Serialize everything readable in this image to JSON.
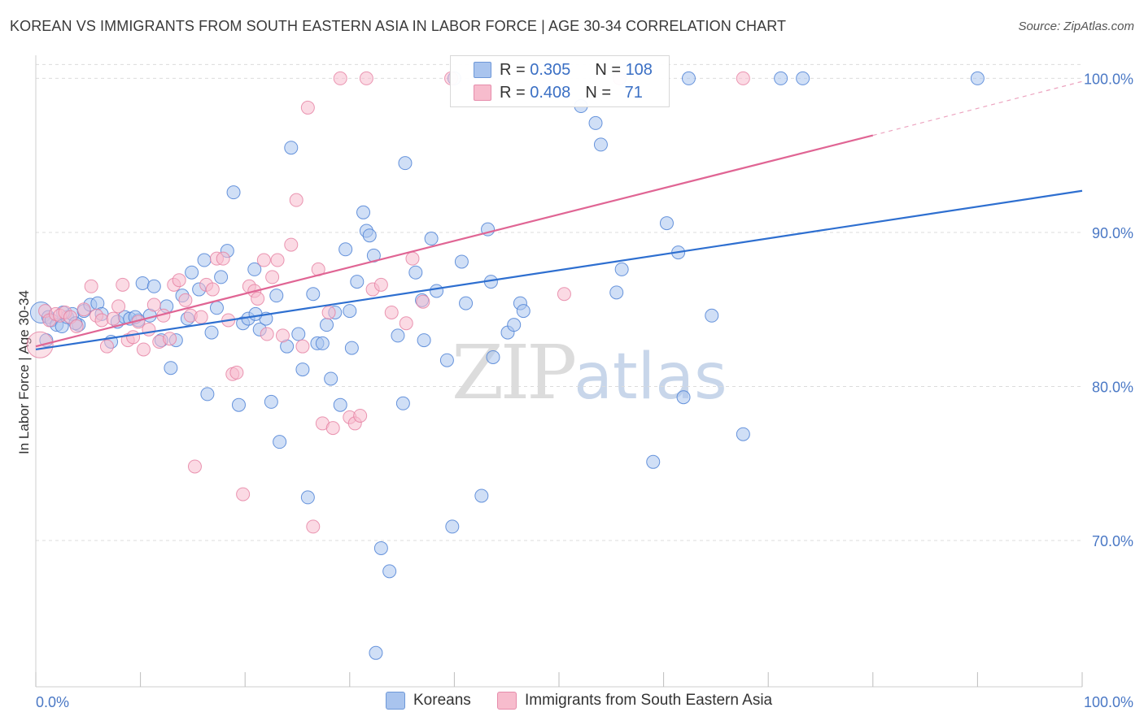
{
  "header": {
    "title": "KOREAN VS IMMIGRANTS FROM SOUTH EASTERN ASIA IN LABOR FORCE | AGE 30-34 CORRELATION CHART",
    "source": "Source: ZipAtlas.com"
  },
  "watermark": {
    "zip": "ZIP",
    "atlas": "atlas"
  },
  "legend": {
    "korean": {
      "r_label": "R =",
      "r_value": "0.305",
      "n_label": "N =",
      "n_value": "108"
    },
    "sea": {
      "r_label": "R =",
      "r_value": "0.408",
      "n_label": "N =",
      "n_value": "71"
    }
  },
  "colors": {
    "korean_fill": "#a9c4ee",
    "korean_stroke": "#4f83d6",
    "korean_line": "#2e6fd0",
    "sea_fill": "#f7bccd",
    "sea_stroke": "#e57ea0",
    "sea_line": "#e06594",
    "tick_text": "#4a78c5",
    "grid": "#dcdcdc"
  },
  "chart_data": {
    "type": "scatter",
    "title": "KOREAN VS IMMIGRANTS FROM SOUTH EASTERN ASIA IN LABOR FORCE | AGE 30-34 CORRELATION CHART",
    "xlabel": "",
    "ylabel": "In Labor Force | Age 30-34",
    "xlim": [
      0,
      100
    ],
    "ylim": [
      60.5,
      101.5
    ],
    "x_tick_labels": [
      "0.0%",
      "100.0%"
    ],
    "y_ticks": [
      70,
      80,
      90,
      100
    ],
    "y_tick_labels": [
      "70.0%",
      "80.0%",
      "90.0%",
      "100.0%"
    ],
    "grid": "horizontal dashed",
    "legend_position": "top-center and bottom",
    "series": [
      {
        "name": "Koreans",
        "r": 0.305,
        "n": 108,
        "trend": {
          "x": [
            0,
            100
          ],
          "y": [
            82.4,
            92.7
          ]
        },
        "points": [
          [
            0.5,
            84.8
          ],
          [
            1.2,
            84.5
          ],
          [
            1.5,
            84.3
          ],
          [
            2.0,
            84.0
          ],
          [
            2.5,
            83.9
          ],
          [
            3.0,
            84.5
          ],
          [
            3.5,
            84.7
          ],
          [
            4.1,
            84.0
          ],
          [
            4.6,
            84.9
          ],
          [
            5.2,
            85.3
          ],
          [
            5.9,
            85.4
          ],
          [
            6.3,
            84.7
          ],
          [
            7.2,
            82.9
          ],
          [
            7.8,
            84.2
          ],
          [
            8.5,
            84.5
          ],
          [
            9.0,
            84.4
          ],
          [
            9.8,
            84.3
          ],
          [
            10.2,
            86.7
          ],
          [
            10.9,
            84.6
          ],
          [
            11.3,
            86.5
          ],
          [
            12.0,
            83.0
          ],
          [
            12.5,
            85.2
          ],
          [
            12.9,
            81.2
          ],
          [
            13.4,
            83.0
          ],
          [
            14.0,
            85.9
          ],
          [
            14.5,
            84.4
          ],
          [
            14.9,
            87.4
          ],
          [
            15.6,
            86.3
          ],
          [
            16.1,
            88.2
          ],
          [
            16.4,
            79.5
          ],
          [
            16.8,
            83.5
          ],
          [
            17.3,
            85.1
          ],
          [
            17.7,
            87.1
          ],
          [
            18.3,
            88.8
          ],
          [
            18.9,
            92.6
          ],
          [
            19.4,
            78.8
          ],
          [
            19.8,
            84.1
          ],
          [
            20.3,
            84.4
          ],
          [
            20.9,
            87.6
          ],
          [
            21.4,
            83.7
          ],
          [
            22.0,
            84.4
          ],
          [
            22.5,
            79.0
          ],
          [
            23.0,
            85.9
          ],
          [
            23.3,
            76.4
          ],
          [
            24.0,
            82.6
          ],
          [
            24.4,
            95.5
          ],
          [
            25.1,
            83.4
          ],
          [
            25.5,
            81.1
          ],
          [
            26.0,
            72.8
          ],
          [
            26.5,
            86.0
          ],
          [
            26.9,
            82.8
          ],
          [
            27.4,
            82.8
          ],
          [
            27.8,
            84.0
          ],
          [
            28.2,
            80.5
          ],
          [
            28.6,
            84.8
          ],
          [
            29.1,
            78.8
          ],
          [
            29.6,
            88.9
          ],
          [
            30.2,
            82.5
          ],
          [
            30.7,
            86.8
          ],
          [
            31.3,
            91.3
          ],
          [
            31.6,
            90.1
          ],
          [
            31.9,
            89.8
          ],
          [
            32.3,
            88.5
          ],
          [
            33.0,
            69.5
          ],
          [
            33.8,
            68.0
          ],
          [
            34.6,
            83.3
          ],
          [
            35.1,
            78.9
          ],
          [
            35.3,
            94.5
          ],
          [
            36.3,
            87.4
          ],
          [
            36.9,
            85.6
          ],
          [
            37.1,
            83.0
          ],
          [
            37.8,
            89.6
          ],
          [
            38.3,
            86.2
          ],
          [
            39.3,
            81.7
          ],
          [
            39.8,
            70.9
          ],
          [
            40.7,
            88.1
          ],
          [
            41.1,
            85.4
          ],
          [
            42.6,
            72.9
          ],
          [
            43.2,
            90.2
          ],
          [
            43.5,
            86.8
          ],
          [
            43.7,
            81.9
          ],
          [
            45.1,
            83.5
          ],
          [
            45.7,
            84.0
          ],
          [
            46.3,
            85.4
          ],
          [
            46.6,
            84.9
          ],
          [
            52.1,
            98.2
          ],
          [
            53.5,
            97.1
          ],
          [
            54.0,
            95.7
          ],
          [
            55.5,
            86.1
          ],
          [
            56.0,
            87.6
          ],
          [
            59.0,
            75.1
          ],
          [
            60.3,
            90.6
          ],
          [
            61.4,
            88.7
          ],
          [
            61.9,
            79.3
          ],
          [
            62.4,
            100.0
          ],
          [
            64.6,
            84.6
          ],
          [
            67.6,
            76.9
          ],
          [
            71.2,
            100.0
          ],
          [
            73.3,
            100.0
          ],
          [
            90.0,
            100.0
          ],
          [
            1.0,
            83.0
          ],
          [
            3.8,
            84.1
          ],
          [
            9.5,
            84.5
          ],
          [
            21.0,
            84.7
          ],
          [
            30.0,
            84.9
          ],
          [
            32.5,
            62.7
          ],
          [
            40.0,
            100.0
          ],
          [
            2.6,
            84.8
          ]
        ]
      },
      {
        "name": "Immigrants from South Eastern Asia",
        "r": 0.408,
        "n": 71,
        "trend": {
          "x": [
            0,
            80
          ],
          "y": [
            82.6,
            96.3
          ]
        },
        "trend_dashed": {
          "x": [
            80,
            100
          ],
          "y": [
            96.3,
            99.8
          ]
        },
        "points": [
          [
            0.4,
            82.7
          ],
          [
            0.9,
            84.9
          ],
          [
            1.3,
            84.3
          ],
          [
            1.9,
            84.7
          ],
          [
            2.3,
            84.6
          ],
          [
            2.8,
            84.8
          ],
          [
            3.3,
            84.5
          ],
          [
            3.9,
            83.9
          ],
          [
            4.6,
            85.0
          ],
          [
            5.3,
            86.5
          ],
          [
            5.8,
            84.6
          ],
          [
            6.3,
            84.3
          ],
          [
            6.8,
            82.6
          ],
          [
            7.4,
            84.4
          ],
          [
            7.9,
            85.2
          ],
          [
            8.3,
            86.6
          ],
          [
            8.8,
            83.0
          ],
          [
            9.3,
            83.2
          ],
          [
            9.8,
            84.2
          ],
          [
            10.3,
            82.4
          ],
          [
            10.8,
            83.7
          ],
          [
            11.3,
            85.3
          ],
          [
            11.8,
            82.9
          ],
          [
            12.2,
            84.6
          ],
          [
            12.8,
            83.1
          ],
          [
            13.2,
            86.6
          ],
          [
            13.7,
            86.9
          ],
          [
            14.3,
            85.6
          ],
          [
            14.8,
            84.6
          ],
          [
            15.2,
            74.8
          ],
          [
            15.8,
            84.5
          ],
          [
            16.3,
            86.6
          ],
          [
            16.9,
            86.3
          ],
          [
            17.3,
            88.3
          ],
          [
            17.9,
            88.3
          ],
          [
            18.4,
            84.3
          ],
          [
            18.8,
            80.8
          ],
          [
            19.2,
            80.9
          ],
          [
            19.8,
            73.0
          ],
          [
            20.4,
            86.5
          ],
          [
            20.9,
            86.2
          ],
          [
            21.2,
            85.7
          ],
          [
            21.8,
            88.2
          ],
          [
            22.1,
            83.4
          ],
          [
            22.6,
            87.1
          ],
          [
            23.1,
            88.2
          ],
          [
            23.6,
            83.3
          ],
          [
            24.4,
            89.2
          ],
          [
            24.9,
            92.1
          ],
          [
            25.5,
            82.6
          ],
          [
            26.0,
            98.1
          ],
          [
            26.5,
            70.9
          ],
          [
            27.0,
            87.6
          ],
          [
            27.4,
            77.6
          ],
          [
            28.0,
            84.8
          ],
          [
            28.4,
            77.3
          ],
          [
            29.1,
            100.0
          ],
          [
            30.0,
            78.0
          ],
          [
            30.5,
            77.6
          ],
          [
            31.0,
            78.1
          ],
          [
            31.6,
            100.0
          ],
          [
            32.2,
            86.3
          ],
          [
            33.0,
            86.6
          ],
          [
            34.0,
            84.8
          ],
          [
            35.4,
            84.1
          ],
          [
            36.0,
            88.3
          ],
          [
            37.0,
            85.5
          ],
          [
            39.7,
            100.0
          ],
          [
            50.5,
            86.0
          ],
          [
            55.8,
            100.0
          ],
          [
            67.6,
            100.0
          ]
        ]
      }
    ]
  },
  "bottom_legend": {
    "korean": "Koreans",
    "sea": "Immigrants from South Eastern Asia"
  }
}
